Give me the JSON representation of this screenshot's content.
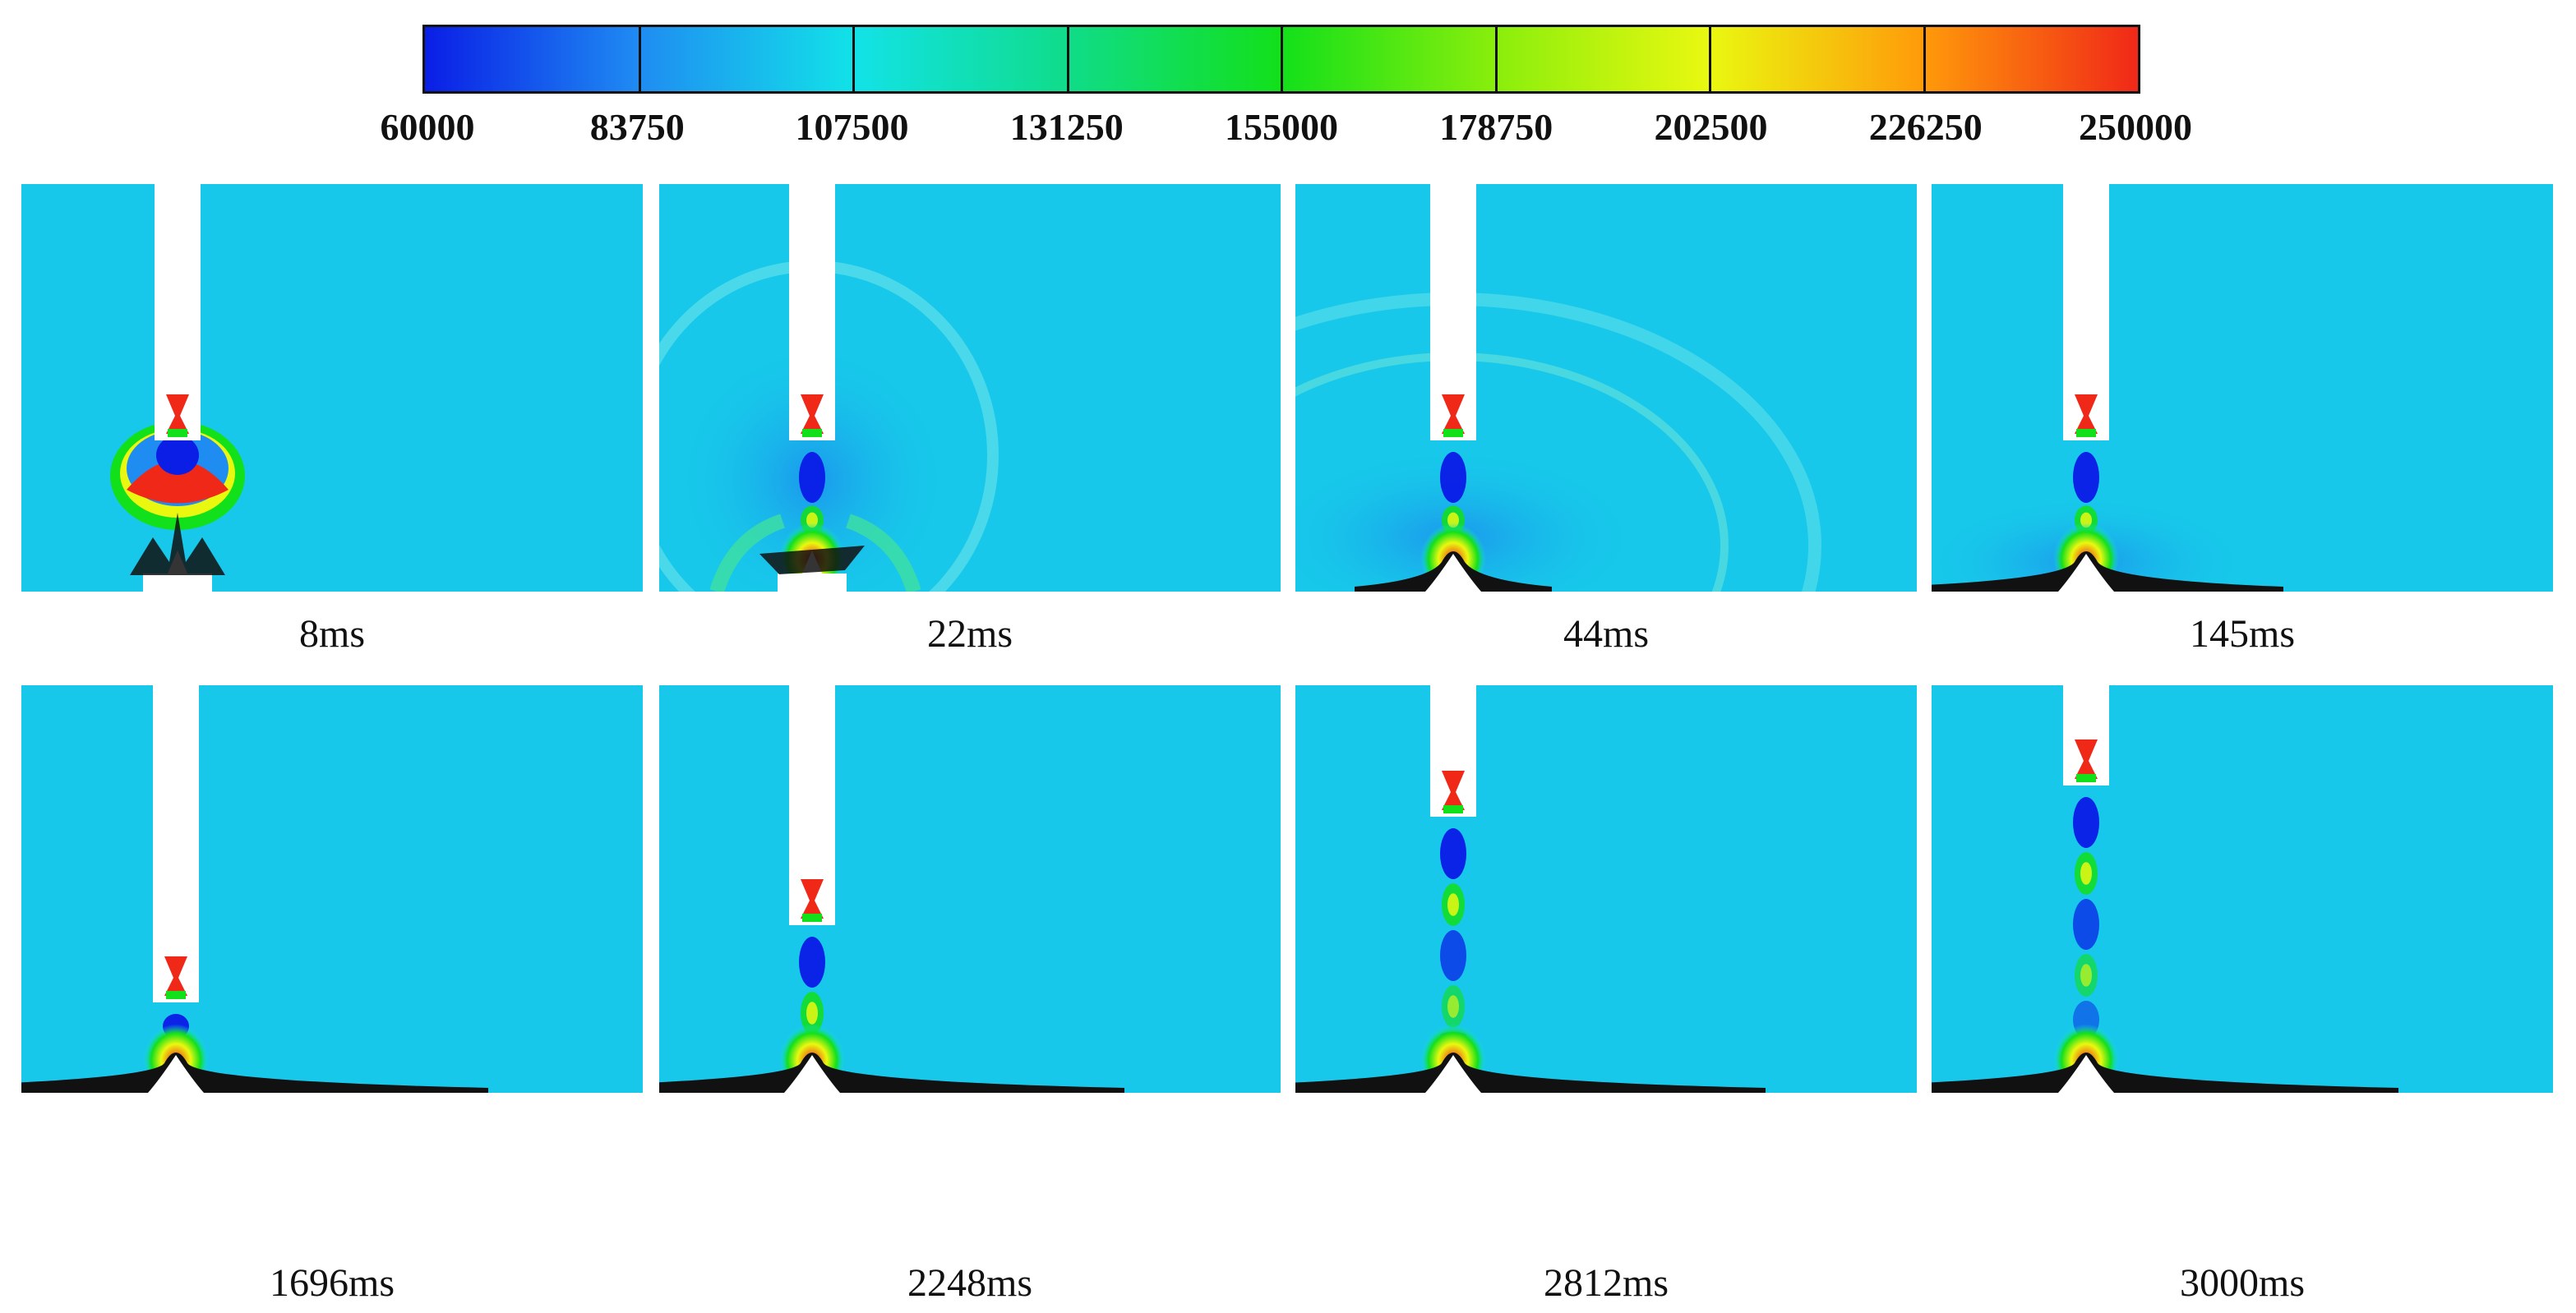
{
  "colorbar": {
    "ticks": [
      "60000",
      "83750",
      "107500",
      "131250",
      "155000",
      "178750",
      "202500",
      "226250",
      "250000"
    ],
    "colors": [
      "#0a1ee6",
      "#1f8cf2",
      "#12e2e8",
      "#10dc8a",
      "#12e01a",
      "#8aee0c",
      "#eaf810",
      "#ff9a0a",
      "#f02818"
    ]
  },
  "frames": [
    {
      "label": "8ms"
    },
    {
      "label": "22ms"
    },
    {
      "label": "44ms"
    },
    {
      "label": "145ms"
    },
    {
      "label": "1696ms"
    },
    {
      "label": "2248ms"
    },
    {
      "label": "2812ms"
    },
    {
      "label": "3000ms"
    }
  ]
}
